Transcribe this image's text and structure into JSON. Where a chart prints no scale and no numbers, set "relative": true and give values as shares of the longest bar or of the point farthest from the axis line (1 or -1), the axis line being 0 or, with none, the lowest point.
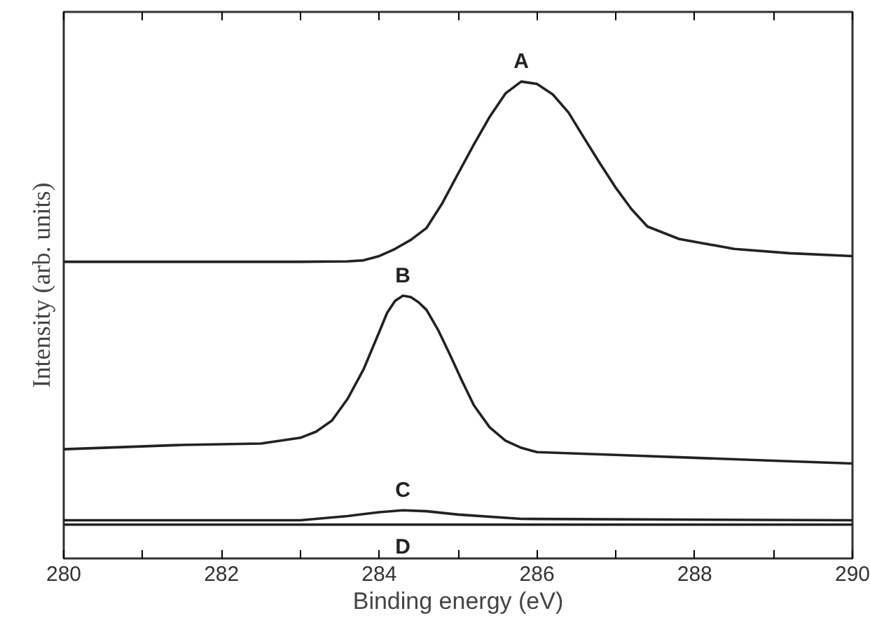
{
  "chart_data": {
    "type": "line",
    "relative": true,
    "xlabel": "Binding energy (eV)",
    "ylabel": "Intensity (arb. units)",
    "xlim": [
      280,
      290
    ],
    "xticks": [
      280,
      {
        "value": 281,
        "label": null
      },
      282,
      {
        "value": 283,
        "label": null
      },
      284,
      {
        "value": 285,
        "label": null
      },
      286,
      {
        "value": 287,
        "label": null
      },
      288,
      {
        "value": 289,
        "label": null
      },
      290
    ],
    "grid": false,
    "marker": "none",
    "line_style": "solid",
    "series": [
      {
        "name": "A",
        "color": "#222222",
        "x": [
          280,
          281,
          282,
          283,
          283.6,
          283.8,
          284.0,
          284.2,
          284.4,
          284.6,
          284.8,
          285.0,
          285.2,
          285.4,
          285.6,
          285.8,
          286.0,
          286.2,
          286.4,
          286.6,
          286.8,
          287.0,
          287.2,
          287.4,
          287.8,
          288.5,
          289.2,
          290
        ],
        "values": [
          0.622,
          0.622,
          0.622,
          0.622,
          0.623,
          0.625,
          0.634,
          0.649,
          0.668,
          0.693,
          0.745,
          0.807,
          0.868,
          0.926,
          0.975,
          1.0,
          0.995,
          0.973,
          0.935,
          0.881,
          0.828,
          0.777,
          0.732,
          0.696,
          0.67,
          0.649,
          0.64,
          0.634
        ]
      },
      {
        "name": "B",
        "color": "#222222",
        "x": [
          280,
          281.5,
          282.5,
          283.0,
          283.2,
          283.4,
          283.6,
          283.8,
          284.0,
          284.1,
          284.2,
          284.3,
          284.4,
          284.5,
          284.6,
          284.75,
          284.9,
          285.05,
          285.2,
          285.4,
          285.6,
          285.8,
          286.0,
          287,
          288,
          289,
          290
        ],
        "values": [
          0.229,
          0.238,
          0.241,
          0.253,
          0.266,
          0.289,
          0.335,
          0.396,
          0.475,
          0.515,
          0.54,
          0.551,
          0.548,
          0.537,
          0.521,
          0.478,
          0.426,
          0.372,
          0.321,
          0.275,
          0.247,
          0.232,
          0.223,
          0.217,
          0.211,
          0.205,
          0.199
        ]
      },
      {
        "name": "C",
        "color": "#222222",
        "x": [
          280,
          283,
          283.6,
          284.0,
          284.3,
          284.6,
          285,
          285.8,
          290
        ],
        "values": [
          0.08,
          0.08,
          0.089,
          0.097,
          0.101,
          0.099,
          0.092,
          0.083,
          0.08
        ]
      },
      {
        "name": "D",
        "color": "#222222",
        "x": [
          280,
          290
        ],
        "values": [
          0.071,
          0.071
        ]
      }
    ]
  }
}
